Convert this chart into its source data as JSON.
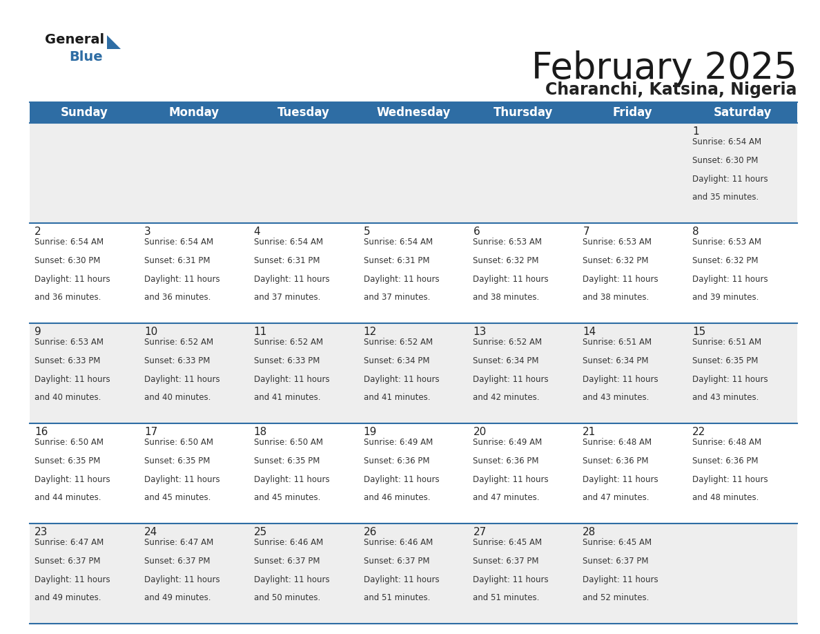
{
  "title": "February 2025",
  "subtitle": "Charanchi, Katsina, Nigeria",
  "header_color": "#2e6da4",
  "header_text_color": "#ffffff",
  "day_names": [
    "Sunday",
    "Monday",
    "Tuesday",
    "Wednesday",
    "Thursday",
    "Friday",
    "Saturday"
  ],
  "title_font_size": 38,
  "subtitle_font_size": 17,
  "header_font_size": 12,
  "day_num_font_size": 11,
  "cell_text_font_size": 8.5,
  "border_color": "#2e6da4",
  "day_number_color": "#222222",
  "text_color": "#333333",
  "row0_bg": "#eeeeee",
  "row1_bg": "#ffffff",
  "calendar_data": [
    [
      null,
      null,
      null,
      null,
      null,
      null,
      1
    ],
    [
      2,
      3,
      4,
      5,
      6,
      7,
      8
    ],
    [
      9,
      10,
      11,
      12,
      13,
      14,
      15
    ],
    [
      16,
      17,
      18,
      19,
      20,
      21,
      22
    ],
    [
      23,
      24,
      25,
      26,
      27,
      28,
      null
    ]
  ],
  "sunrise_data": {
    "1": "6:54 AM",
    "2": "6:54 AM",
    "3": "6:54 AM",
    "4": "6:54 AM",
    "5": "6:54 AM",
    "6": "6:53 AM",
    "7": "6:53 AM",
    "8": "6:53 AM",
    "9": "6:53 AM",
    "10": "6:52 AM",
    "11": "6:52 AM",
    "12": "6:52 AM",
    "13": "6:52 AM",
    "14": "6:51 AM",
    "15": "6:51 AM",
    "16": "6:50 AM",
    "17": "6:50 AM",
    "18": "6:50 AM",
    "19": "6:49 AM",
    "20": "6:49 AM",
    "21": "6:48 AM",
    "22": "6:48 AM",
    "23": "6:47 AM",
    "24": "6:47 AM",
    "25": "6:46 AM",
    "26": "6:46 AM",
    "27": "6:45 AM",
    "28": "6:45 AM"
  },
  "sunset_data": {
    "1": "6:30 PM",
    "2": "6:30 PM",
    "3": "6:31 PM",
    "4": "6:31 PM",
    "5": "6:31 PM",
    "6": "6:32 PM",
    "7": "6:32 PM",
    "8": "6:32 PM",
    "9": "6:33 PM",
    "10": "6:33 PM",
    "11": "6:33 PM",
    "12": "6:34 PM",
    "13": "6:34 PM",
    "14": "6:34 PM",
    "15": "6:35 PM",
    "16": "6:35 PM",
    "17": "6:35 PM",
    "18": "6:35 PM",
    "19": "6:36 PM",
    "20": "6:36 PM",
    "21": "6:36 PM",
    "22": "6:36 PM",
    "23": "6:37 PM",
    "24": "6:37 PM",
    "25": "6:37 PM",
    "26": "6:37 PM",
    "27": "6:37 PM",
    "28": "6:37 PM"
  },
  "daylight_data": {
    "1": [
      "11 hours",
      "and 35 minutes."
    ],
    "2": [
      "11 hours",
      "and 36 minutes."
    ],
    "3": [
      "11 hours",
      "and 36 minutes."
    ],
    "4": [
      "11 hours",
      "and 37 minutes."
    ],
    "5": [
      "11 hours",
      "and 37 minutes."
    ],
    "6": [
      "11 hours",
      "and 38 minutes."
    ],
    "7": [
      "11 hours",
      "and 38 minutes."
    ],
    "8": [
      "11 hours",
      "and 39 minutes."
    ],
    "9": [
      "11 hours",
      "and 40 minutes."
    ],
    "10": [
      "11 hours",
      "and 40 minutes."
    ],
    "11": [
      "11 hours",
      "and 41 minutes."
    ],
    "12": [
      "11 hours",
      "and 41 minutes."
    ],
    "13": [
      "11 hours",
      "and 42 minutes."
    ],
    "14": [
      "11 hours",
      "and 43 minutes."
    ],
    "15": [
      "11 hours",
      "and 43 minutes."
    ],
    "16": [
      "11 hours",
      "and 44 minutes."
    ],
    "17": [
      "11 hours",
      "and 45 minutes."
    ],
    "18": [
      "11 hours",
      "and 45 minutes."
    ],
    "19": [
      "11 hours",
      "and 46 minutes."
    ],
    "20": [
      "11 hours",
      "and 47 minutes."
    ],
    "21": [
      "11 hours",
      "and 47 minutes."
    ],
    "22": [
      "11 hours",
      "and 48 minutes."
    ],
    "23": [
      "11 hours",
      "and 49 minutes."
    ],
    "24": [
      "11 hours",
      "and 49 minutes."
    ],
    "25": [
      "11 hours",
      "and 50 minutes."
    ],
    "26": [
      "11 hours",
      "and 51 minutes."
    ],
    "27": [
      "11 hours",
      "and 51 minutes."
    ],
    "28": [
      "11 hours",
      "and 52 minutes."
    ]
  }
}
